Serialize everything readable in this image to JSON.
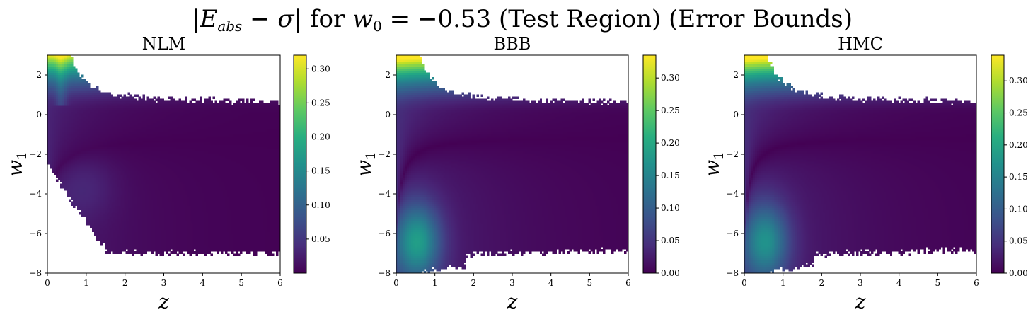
{
  "figure": {
    "title": "|E_abs − σ| for w_0 = −0.53 (Test Region) (Error Bounds)",
    "title_parts": {
      "bar_left": "|",
      "e": "E",
      "e_sub": "abs",
      "minus_sigma": " − σ",
      "bar_right": "|",
      "for": " for ",
      "w": "w",
      "w_sub": "0",
      "eq": " = −0.53 (Test Region) (Error Bounds)"
    }
  },
  "chart_data": [
    {
      "type": "heatmap",
      "title": "NLM",
      "xlabel": "z",
      "ylabel": "w",
      "ylabel_sub": "1",
      "xlim": [
        0,
        6
      ],
      "ylim": [
        -8,
        3
      ],
      "xticks": [
        "0",
        "1",
        "2",
        "3",
        "4",
        "5",
        "6"
      ],
      "yticks": [
        "−8",
        "−6",
        "−4",
        "−2",
        "0",
        "2"
      ],
      "colorbar_range": [
        0.0,
        0.32
      ],
      "colorbar_ticks": [
        "0.05",
        "0.10",
        "0.15",
        "0.20",
        "0.25",
        "0.30"
      ],
      "colormap": "viridis"
    },
    {
      "type": "heatmap",
      "title": "BBB",
      "xlabel": "z",
      "ylabel": "w",
      "ylabel_sub": "1",
      "xlim": [
        0,
        6
      ],
      "ylim": [
        -8,
        3
      ],
      "xticks": [
        "0",
        "1",
        "2",
        "3",
        "4",
        "5",
        "6"
      ],
      "yticks": [
        "−8",
        "−6",
        "−4",
        "−2",
        "0",
        "2"
      ],
      "colorbar_range": [
        0.0,
        0.335
      ],
      "colorbar_ticks": [
        "0.00",
        "0.05",
        "0.10",
        "0.15",
        "0.20",
        "0.25",
        "0.30"
      ],
      "colormap": "viridis"
    },
    {
      "type": "heatmap",
      "title": "HMC",
      "xlabel": "z",
      "ylabel": "w",
      "ylabel_sub": "1",
      "xlim": [
        0,
        6
      ],
      "ylim": [
        -8,
        3
      ],
      "xticks": [
        "0",
        "1",
        "2",
        "3",
        "4",
        "5",
        "6"
      ],
      "yticks": [
        "−8",
        "−6",
        "−4",
        "−2",
        "0",
        "2"
      ],
      "colorbar_range": [
        0.0,
        0.34
      ],
      "colorbar_ticks": [
        "0.00",
        "0.05",
        "0.10",
        "0.15",
        "0.20",
        "0.25",
        "0.30"
      ],
      "colormap": "viridis"
    }
  ]
}
